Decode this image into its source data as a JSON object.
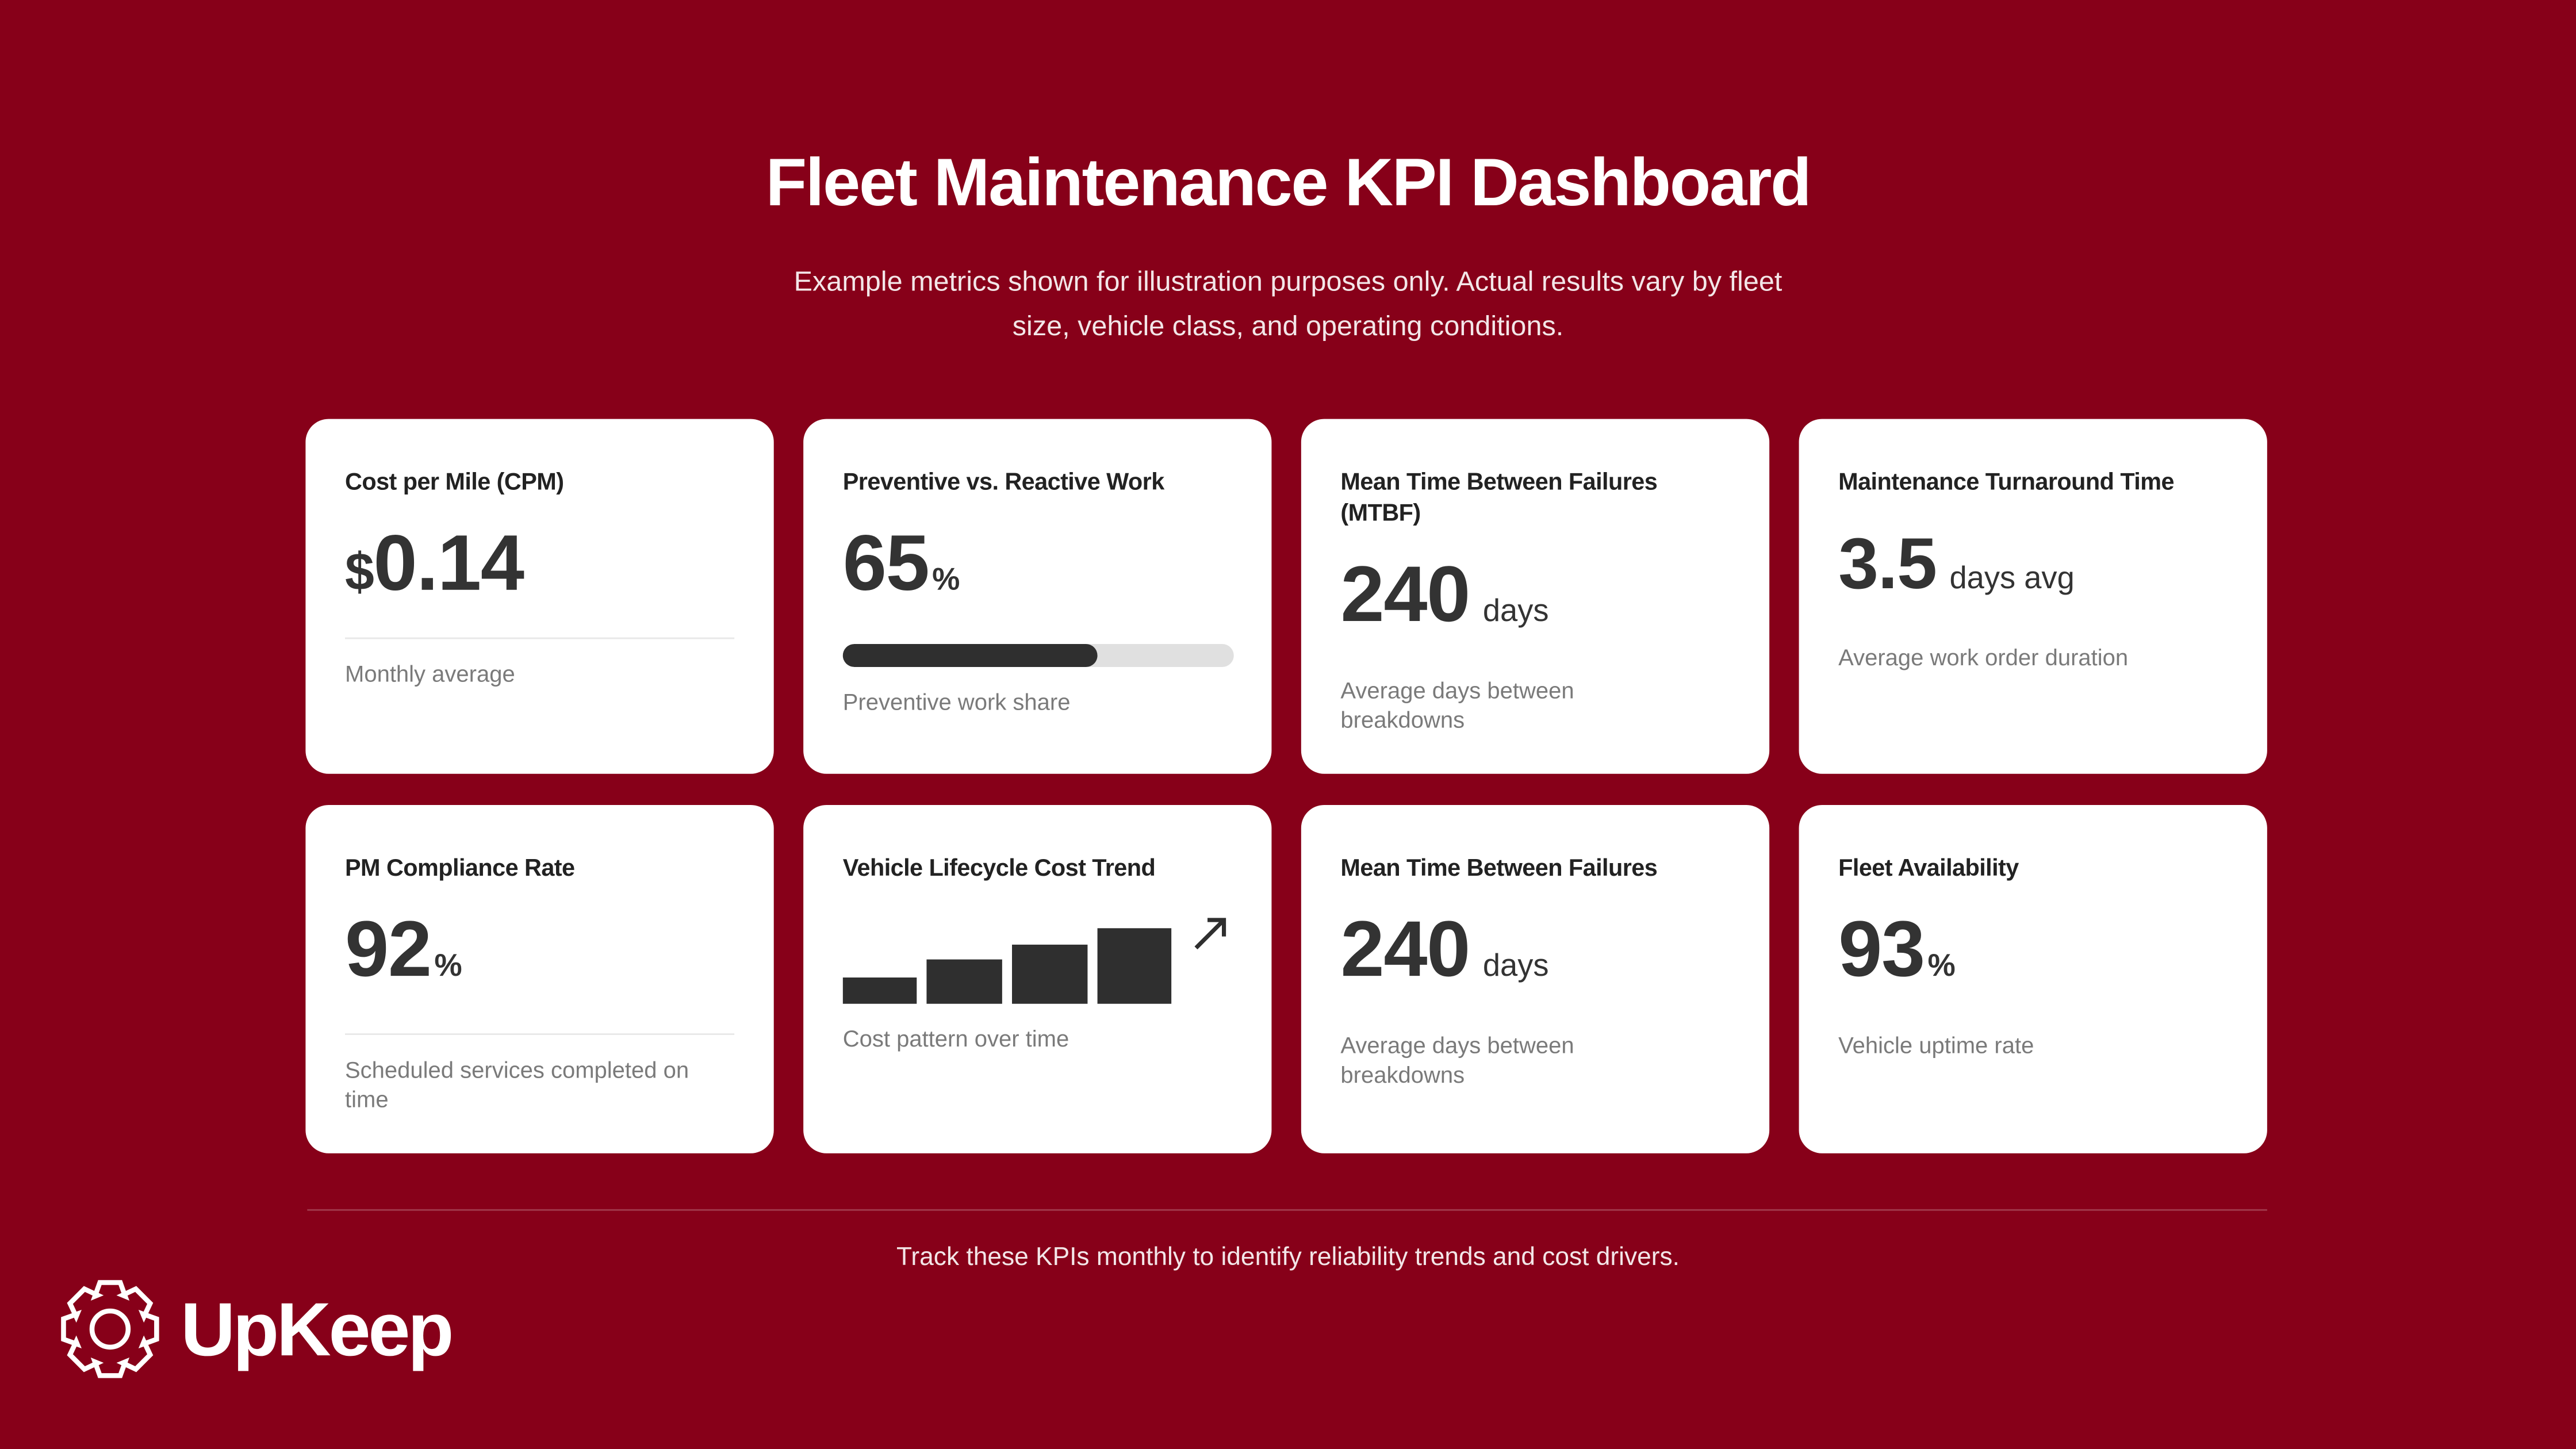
{
  "header": {
    "title": "Fleet Maintenance KPI Dashboard",
    "subtitle_lines": [
      "Example metrics shown for illustration purposes only. Actual results vary by fleet",
      "size, vehicle class, and operating conditions."
    ]
  },
  "cards": [
    {
      "title": "Cost per Mile (CPM)",
      "prefix": "$",
      "value": 0.14,
      "description": "Monthly average"
    },
    {
      "title": "Preventive vs. Reactive Work",
      "value": 65,
      "unit": "%",
      "description": "Preventive work share"
    },
    {
      "title": "Mean Time Between Failures (MTBF)",
      "value": 240,
      "unit": "days",
      "description": "Average days between breakdowns"
    },
    {
      "title": "Maintenance Turnaround Time",
      "value": 3.5,
      "unit": "days avg",
      "description": "Average work order duration"
    },
    {
      "title": "PM Compliance Rate",
      "value": 92,
      "unit": "%",
      "description": "Scheduled services completed on time"
    },
    {
      "title": "Vehicle Lifecycle Cost Trend",
      "description": "Cost pattern over time"
    },
    {
      "title": "Mean Time Between Failures",
      "value": 240,
      "unit": "days",
      "description": "Average days between breakdowns"
    },
    {
      "title": "Fleet Availability",
      "value": 93,
      "unit": "%",
      "description": "Vehicle uptime rate"
    }
  ],
  "footer": "Track these KPIs monthly to identify reliability trends and cost drivers.",
  "logo": "UpKeep"
}
